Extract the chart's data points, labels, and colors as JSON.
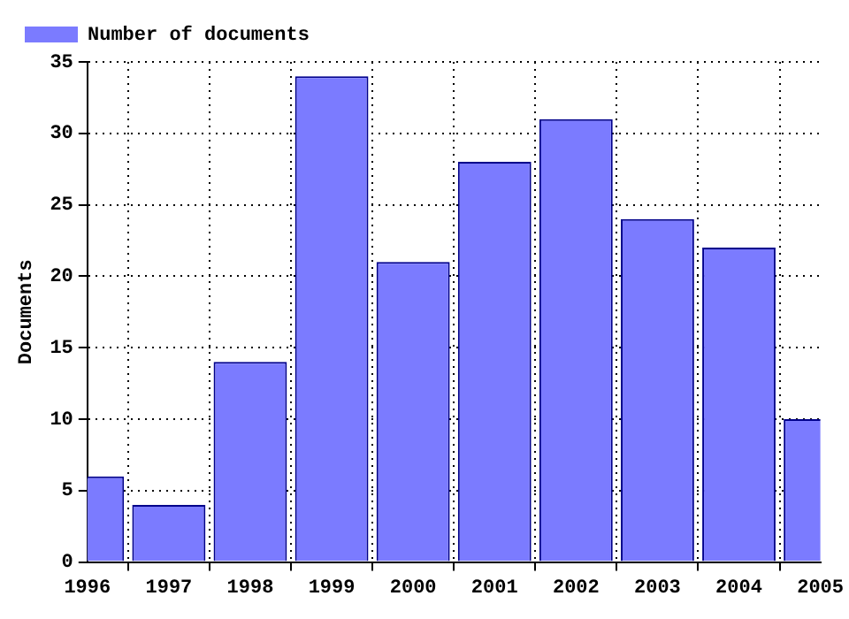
{
  "chart_data": {
    "type": "bar",
    "ylabel": "Documents",
    "x": [
      1996,
      1997,
      1998,
      1999,
      2000,
      2001,
      2002,
      2003,
      2004,
      2005
    ],
    "series": [
      {
        "name": "Number of documents",
        "color": "#7b7bff",
        "values": [
          6,
          4,
          14,
          34,
          21,
          28,
          31,
          24,
          22,
          10
        ]
      }
    ],
    "xlim": [
      1996,
      2005
    ],
    "xticks": [
      1996,
      1997,
      1998,
      1999,
      2000,
      2001,
      2002,
      2003,
      2004,
      2005
    ],
    "ylim": [
      0,
      35
    ],
    "yticks": [
      0,
      5,
      10,
      15,
      20,
      25,
      30,
      35
    ],
    "grid": true,
    "legend": "top"
  }
}
